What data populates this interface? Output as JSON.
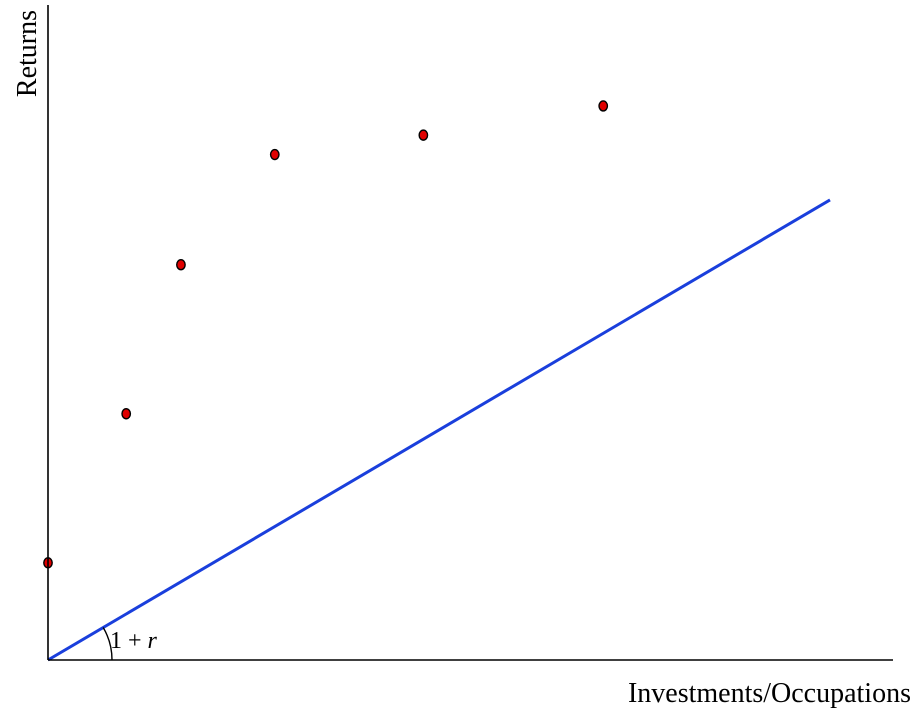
{
  "chart_data": {
    "type": "scatter",
    "xlabel": "Investments/Occupations",
    "ylabel": "Returns",
    "xlim": [
      0,
      10
    ],
    "ylim": [
      0,
      10
    ],
    "grid": false,
    "legend": "none",
    "points": [
      {
        "x": 0.0,
        "y": 1.5
      },
      {
        "x": 1.0,
        "y": 3.8
      },
      {
        "x": 1.7,
        "y": 6.1
      },
      {
        "x": 2.9,
        "y": 7.8
      },
      {
        "x": 4.8,
        "y": 8.1
      },
      {
        "x": 7.1,
        "y": 8.55
      }
    ],
    "line": {
      "x": [
        0,
        10
      ],
      "y": [
        0,
        7.1
      ]
    },
    "annotation": {
      "base": "1 + ",
      "var": "r"
    },
    "colors": {
      "point_fill": "#e00000",
      "point_stroke": "#000000",
      "line": "#1a3fdc",
      "axis": "#000000"
    }
  }
}
